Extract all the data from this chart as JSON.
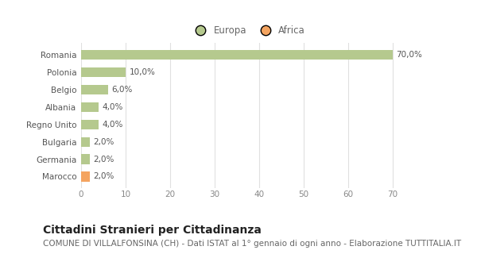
{
  "categories": [
    "Marocco",
    "Germania",
    "Bulgaria",
    "Regno Unito",
    "Albania",
    "Belgio",
    "Polonia",
    "Romania"
  ],
  "values": [
    2.0,
    2.0,
    2.0,
    4.0,
    4.0,
    6.0,
    10.0,
    70.0
  ],
  "colors": [
    "#f4a460",
    "#b5c98e",
    "#b5c98e",
    "#b5c98e",
    "#b5c98e",
    "#b5c98e",
    "#b5c98e",
    "#b5c98e"
  ],
  "labels": [
    "2,0%",
    "2,0%",
    "2,0%",
    "4,0%",
    "4,0%",
    "6,0%",
    "10,0%",
    "70,0%"
  ],
  "legend": [
    {
      "label": "Europa",
      "color": "#b5c98e"
    },
    {
      "label": "Africa",
      "color": "#f4a460"
    }
  ],
  "xlim": [
    0,
    75
  ],
  "xticks": [
    0,
    10,
    20,
    30,
    40,
    50,
    60,
    70
  ],
  "title": "Cittadini Stranieri per Cittadinanza",
  "subtitle": "COMUNE DI VILLALFONSINA (CH) - Dati ISTAT al 1° gennaio di ogni anno - Elaborazione TUTTITALIA.IT",
  "background_color": "#ffffff",
  "grid_color": "#e0e0e0",
  "bar_height": 0.55,
  "title_fontsize": 10,
  "subtitle_fontsize": 7.5,
  "label_fontsize": 7.5,
  "tick_fontsize": 7.5,
  "legend_fontsize": 8.5
}
